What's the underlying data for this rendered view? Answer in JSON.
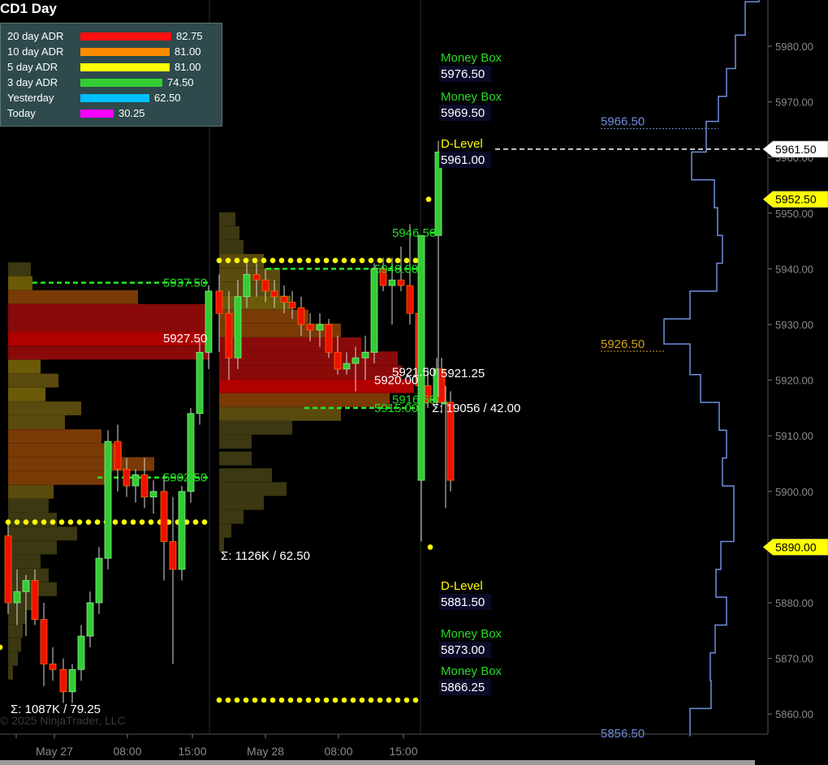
{
  "title": "CD1 Day",
  "copyright": "© 2025 NinjaTrader, LLC",
  "adr": [
    {
      "label": "20 day ADR",
      "value": "82.75",
      "color": "#ff1010",
      "fraction": 1.0
    },
    {
      "label": "10 day ADR",
      "value": "81.00",
      "color": "#ff8c00",
      "fraction": 0.98
    },
    {
      "label": "5 day ADR",
      "value": "81.00",
      "color": "#ffff00",
      "fraction": 0.98
    },
    {
      "label": "3 day ADR",
      "value": "74.50",
      "color": "#32cd32",
      "fraction": 0.9
    },
    {
      "label": "Yesterday",
      "value": "62.50",
      "color": "#00bfff",
      "fraction": 0.755
    },
    {
      "label": "Today",
      "value": "30.25",
      "color": "#ff00ff",
      "fraction": 0.365
    }
  ],
  "chart_data": {
    "type": "candlestick",
    "ylim": [
      5856,
      5991
    ],
    "y_ticks": [
      "5980.00",
      "5970.00",
      "5960.00",
      "5950.00",
      "5940.00",
      "5930.00",
      "5920.00",
      "5910.00",
      "5900.00",
      "5890.00",
      "5880.00",
      "5870.00",
      "5860.00"
    ],
    "x_ticks": [
      "May 27",
      "08:00",
      "15:00",
      "May 28",
      "08:00",
      "15:00"
    ],
    "candles": [
      {
        "o": 5892,
        "h": 5894,
        "l": 5878,
        "c": 5880
      },
      {
        "o": 5880,
        "h": 5886,
        "l": 5876,
        "c": 5882
      },
      {
        "o": 5882,
        "h": 5885,
        "l": 5874,
        "c": 5884
      },
      {
        "o": 5884,
        "h": 5886,
        "l": 5876,
        "c": 5877
      },
      {
        "o": 5877,
        "h": 5880,
        "l": 5865,
        "c": 5869
      },
      {
        "o": 5869,
        "h": 5872,
        "l": 5866,
        "c": 5868
      },
      {
        "o": 5868,
        "h": 5870,
        "l": 5862,
        "c": 5864
      },
      {
        "o": 5864,
        "h": 5869,
        "l": 5862,
        "c": 5868
      },
      {
        "o": 5868,
        "h": 5876,
        "l": 5866,
        "c": 5874
      },
      {
        "o": 5874,
        "h": 5882,
        "l": 5872,
        "c": 5880
      },
      {
        "o": 5880,
        "h": 5890,
        "l": 5878,
        "c": 5888
      },
      {
        "o": 5888,
        "h": 5911,
        "l": 5886,
        "c": 5909
      },
      {
        "o": 5909,
        "h": 5912,
        "l": 5900,
        "c": 5904
      },
      {
        "o": 5904,
        "h": 5906,
        "l": 5899,
        "c": 5901
      },
      {
        "o": 5901,
        "h": 5904,
        "l": 5898,
        "c": 5903
      },
      {
        "o": 5903,
        "h": 5906,
        "l": 5897,
        "c": 5899
      },
      {
        "o": 5899,
        "h": 5902,
        "l": 5896,
        "c": 5900
      },
      {
        "o": 5900,
        "h": 5903,
        "l": 5884,
        "c": 5891
      },
      {
        "o": 5891,
        "h": 5899,
        "l": 5869,
        "c": 5886
      },
      {
        "o": 5886,
        "h": 5901,
        "l": 5884,
        "c": 5900
      },
      {
        "o": 5900,
        "h": 5915,
        "l": 5898,
        "c": 5914
      },
      {
        "o": 5914,
        "h": 5927,
        "l": 5912,
        "c": 5925
      },
      {
        "o": 5925,
        "h": 5937,
        "l": 5922,
        "c": 5936
      },
      {
        "o": 5936,
        "h": 5939,
        "l": 5925,
        "c": 5932
      },
      {
        "o": 5932,
        "h": 5936,
        "l": 5920,
        "c": 5924
      },
      {
        "o": 5924,
        "h": 5938,
        "l": 5922,
        "c": 5935
      },
      {
        "o": 5935,
        "h": 5941,
        "l": 5933,
        "c": 5939
      },
      {
        "o": 5939,
        "h": 5941,
        "l": 5935,
        "c": 5938
      },
      {
        "o": 5938,
        "h": 5940,
        "l": 5934,
        "c": 5936
      },
      {
        "o": 5936,
        "h": 5938,
        "l": 5933,
        "c": 5935
      },
      {
        "o": 5935,
        "h": 5937,
        "l": 5932,
        "c": 5934
      },
      {
        "o": 5934,
        "h": 5936,
        "l": 5931,
        "c": 5933
      },
      {
        "o": 5933,
        "h": 5935,
        "l": 5928,
        "c": 5930
      },
      {
        "o": 5930,
        "h": 5932,
        "l": 5927,
        "c": 5929
      },
      {
        "o": 5929,
        "h": 5932,
        "l": 5926,
        "c": 5930
      },
      {
        "o": 5930,
        "h": 5931,
        "l": 5924,
        "c": 5925
      },
      {
        "o": 5925,
        "h": 5928,
        "l": 5921,
        "c": 5922
      },
      {
        "o": 5922,
        "h": 5925,
        "l": 5921,
        "c": 5923
      },
      {
        "o": 5923,
        "h": 5926,
        "l": 5918,
        "c": 5924
      },
      {
        "o": 5924,
        "h": 5928,
        "l": 5920,
        "c": 5925
      },
      {
        "o": 5925,
        "h": 5941,
        "l": 5923,
        "c": 5940
      },
      {
        "o": 5940,
        "h": 5942,
        "l": 5936,
        "c": 5937
      },
      {
        "o": 5937,
        "h": 5942,
        "l": 5930,
        "c": 5938
      },
      {
        "o": 5938,
        "h": 5944,
        "l": 5936,
        "c": 5937
      },
      {
        "o": 5937,
        "h": 5948,
        "l": 5930,
        "c": 5932
      },
      {
        "o": 5932,
        "h": 5934,
        "l": 5917,
        "c": 5919
      },
      {
        "o": 5919,
        "h": 5922,
        "l": 5915,
        "c": 5916
      },
      {
        "o": 5916,
        "h": 5924,
        "l": 5915,
        "c": 5922
      },
      {
        "o": 5922,
        "h": 5924,
        "l": 5914,
        "c": 5916
      },
      {
        "o": 5916,
        "h": 5919,
        "l": 5897,
        "c": 5916
      },
      {
        "o": 5916,
        "h": 5918,
        "l": 5900,
        "c": 5902
      },
      {
        "o": 5902,
        "h": 5946,
        "l": 5891,
        "c": 5946
      },
      {
        "o": 5946,
        "h": 5963,
        "l": 5917,
        "c": 5961
      }
    ],
    "levels": [
      {
        "name": "Money Box",
        "value": "5976.50",
        "color": "#22dd22"
      },
      {
        "name": "Money Box",
        "value": "5969.50",
        "color": "#22dd22"
      },
      {
        "name": "D-Level",
        "value": "5961.00",
        "color": "#ffff00"
      },
      {
        "name": "D-Level",
        "value": "5881.50",
        "color": "#ffff00"
      },
      {
        "name": "Money Box",
        "value": "5873.00",
        "color": "#22dd22"
      },
      {
        "name": "Money Box",
        "value": "5866.25",
        "color": "#22dd22"
      }
    ],
    "annotations": [
      {
        "text": "5937.50",
        "price": 5937.5,
        "color": "#22dd22"
      },
      {
        "text": "5927.50",
        "price": 5927.5,
        "color": "#ffffff"
      },
      {
        "text": "5902.50",
        "price": 5902.5,
        "color": "#22dd22"
      },
      {
        "text": "5946.50",
        "price": 5946.5,
        "color": "#22dd22"
      },
      {
        "text": "5940.00",
        "price": 5940,
        "color": "#22dd22"
      },
      {
        "text": "5921.50",
        "price": 5921.5,
        "color": "#ffffff"
      },
      {
        "text": "5920.00",
        "price": 5920,
        "color": "#ffffff"
      },
      {
        "text": "5916.50",
        "price": 5916.5,
        "color": "#22dd22"
      },
      {
        "text": "5915.00",
        "price": 5915,
        "color": "#22dd22"
      },
      {
        "text": "5921.25",
        "price": 5921.25,
        "color": "#ffffff"
      },
      {
        "text": "5966.50",
        "price": 5966.5,
        "color": "#6f8fe0"
      },
      {
        "text": "5926.50",
        "price": 5926.5,
        "color": "#d4a017"
      },
      {
        "text": "5856.50",
        "price": 5856.5,
        "color": "#6f8fe0"
      }
    ],
    "sigma_labels": [
      "Σ: 1087K / 79.25",
      "Σ: 1126K / 62.50",
      "Σ: 19056 / 42.00"
    ],
    "price_flags": [
      {
        "value": "5961.50",
        "bg": "#ffffff",
        "fg": "#000000"
      },
      {
        "value": "5952.50",
        "bg": "#ffff00",
        "fg": "#000000"
      },
      {
        "value": "5890.00",
        "bg": "#ffff00",
        "fg": "#000000"
      }
    ],
    "dotted_levels": [
      5894.5,
      5941.5,
      5862.5
    ],
    "dashed_green": [
      5937.5,
      5902.5,
      5940,
      5915
    ],
    "current_price_line": 5961.5
  }
}
